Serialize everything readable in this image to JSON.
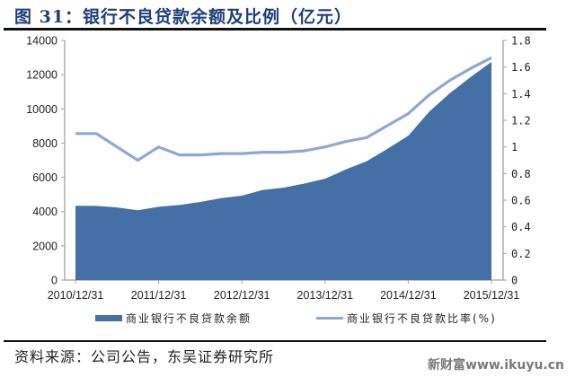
{
  "title": "图 31：银行不良贷款余额及比例（亿元）",
  "source": "资料来源：公司公告，东吴证券研究所",
  "watermark": "新财富www.ikuyu.cn",
  "legend": {
    "area_label": "商业银行不良贷款余额",
    "line_label": "商业银行不良贷款比率(%)"
  },
  "colors": {
    "area": "#4470a5",
    "line": "#8ea8d6",
    "axis": "#a0a0a0"
  },
  "chart_data": {
    "type": "area",
    "title": "图 31：银行不良贷款余额及比例（亿元）",
    "xlabel": "",
    "ylabel": "",
    "x_tick_labels": [
      "2010/12/31",
      "2011/12/31",
      "2012/12/31",
      "2013/12/31",
      "2014/12/31",
      "2015/12/31"
    ],
    "x": [
      "2010Q4",
      "2011Q1",
      "2011Q2",
      "2011Q3",
      "2011Q4",
      "2012Q1",
      "2012Q2",
      "2012Q3",
      "2012Q4",
      "2013Q1",
      "2013Q2",
      "2013Q3",
      "2013Q4",
      "2014Q1",
      "2014Q2",
      "2014Q3",
      "2014Q4",
      "2015Q1",
      "2015Q2",
      "2015Q3",
      "2015Q4"
    ],
    "series": [
      {
        "name": "商业银行不良贷款余额",
        "type": "area",
        "axis": "left",
        "values": [
          4336,
          4333,
          4240,
          4080,
          4279,
          4382,
          4564,
          4786,
          4929,
          5265,
          5395,
          5636,
          5921,
          6461,
          6944,
          7669,
          8426,
          9825,
          10919,
          11863,
          12744
        ]
      },
      {
        "name": "商业银行不良贷款比率(%)",
        "type": "line",
        "axis": "right",
        "values": [
          1.1,
          1.1,
          1.0,
          0.9,
          1.0,
          0.94,
          0.94,
          0.95,
          0.95,
          0.96,
          0.96,
          0.97,
          1.0,
          1.04,
          1.07,
          1.16,
          1.25,
          1.39,
          1.5,
          1.59,
          1.67
        ]
      }
    ],
    "ylim_left": [
      0,
      14000
    ],
    "yticks_left": [
      0,
      2000,
      4000,
      6000,
      8000,
      10000,
      12000,
      14000
    ],
    "ylim_right": [
      0,
      1.8
    ],
    "yticks_right": [
      "0",
      "0.2",
      "0.4",
      "0.6",
      "0.8",
      "1",
      "1.2",
      "1.4",
      "1.6",
      "1.8"
    ],
    "grid": false,
    "legend_position": "bottom"
  }
}
